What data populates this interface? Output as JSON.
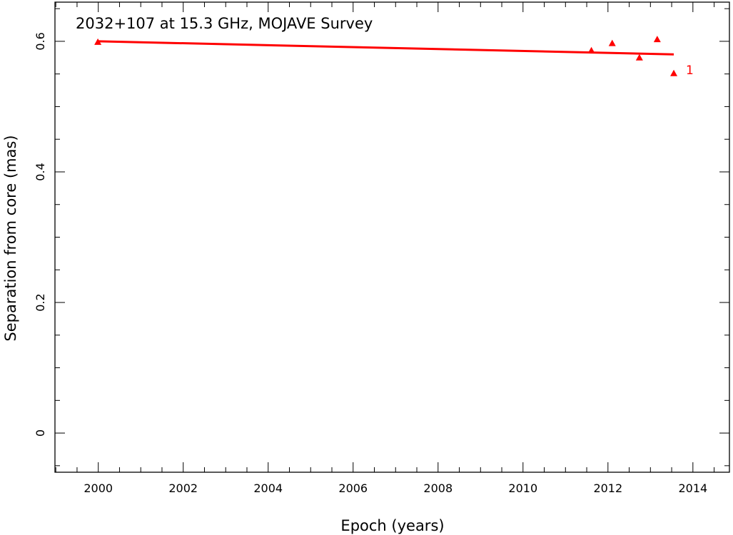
{
  "chart_data": {
    "type": "scatter",
    "title": "2032+107 at 15.3 GHz, MOJAVE Survey",
    "xlabel": "Epoch (years)",
    "ylabel": "Separation from core (mas)",
    "xlim": [
      1998.98,
      2014.86
    ],
    "ylim": [
      -0.06,
      0.66
    ],
    "x_major_ticks": [
      2000,
      2002,
      2004,
      2006,
      2008,
      2010,
      2012,
      2014
    ],
    "x_tick_labels": [
      "2000",
      "2002",
      "2004",
      "2006",
      "2008",
      "2010",
      "2012",
      "2014"
    ],
    "y_major_ticks": [
      0,
      0.2,
      0.4,
      0.6
    ],
    "y_tick_labels": [
      "0",
      "0.2",
      "0.4",
      "0.6"
    ],
    "grid": false,
    "series": [
      {
        "label": "1",
        "color": "#ff0000",
        "marker": "triangle",
        "points": [
          {
            "x": 1999.99,
            "y": 0.599
          },
          {
            "x": 2011.61,
            "y": 0.586
          },
          {
            "x": 2012.1,
            "y": 0.597
          },
          {
            "x": 2012.74,
            "y": 0.575
          },
          {
            "x": 2013.16,
            "y": 0.603
          },
          {
            "x": 2013.55,
            "y": 0.551
          }
        ],
        "fit": [
          {
            "x": 2000.0,
            "y": 0.6
          },
          {
            "x": 2013.55,
            "y": 0.58
          }
        ]
      }
    ]
  }
}
